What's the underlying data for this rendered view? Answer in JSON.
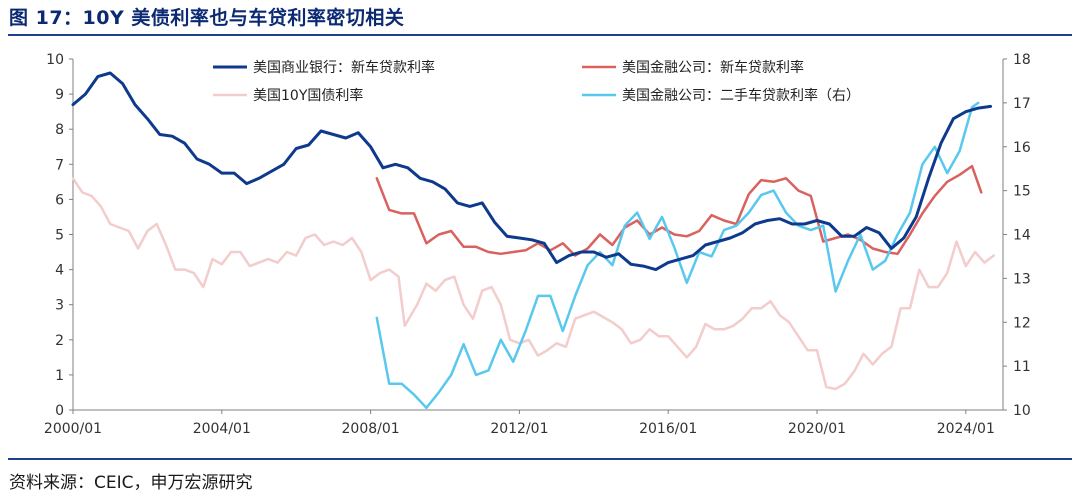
{
  "figure": {
    "title": "图 17：10Y 美债利率也与车贷利率密切相关",
    "source": "资料来源：CEIC，申万宏源研究"
  },
  "chart_data": {
    "type": "line",
    "title": "图 17：10Y 美债利率也与车贷利率密切相关",
    "x_ticks": [
      "2000/01",
      "2004/01",
      "2008/01",
      "2012/01",
      "2016/01",
      "2020/01",
      "2024/01"
    ],
    "xlim": [
      "2000/01",
      "2025/01"
    ],
    "ylim_left": [
      0,
      10
    ],
    "ylim_right": [
      10,
      18
    ],
    "y_ticks_left": [
      "0",
      "1",
      "2",
      "3",
      "4",
      "5",
      "6",
      "7",
      "8",
      "9",
      "10"
    ],
    "y_ticks_right": [
      "10",
      "11",
      "12",
      "13",
      "14",
      "15",
      "16",
      "17",
      "18"
    ],
    "grid": false,
    "legend_placement": "top",
    "series": [
      {
        "name": "美国商业银行：新车贷款利率",
        "axis": "left",
        "color": "#0d3a8c",
        "line_width": 3,
        "points": [
          [
            "2000/01",
            8.7
          ],
          [
            "2000/05",
            9.0
          ],
          [
            "2000/09",
            9.5
          ],
          [
            "2001/01",
            9.6
          ],
          [
            "2001/05",
            9.3
          ],
          [
            "2001/09",
            8.7
          ],
          [
            "2002/01",
            8.3
          ],
          [
            "2002/05",
            7.85
          ],
          [
            "2002/09",
            7.8
          ],
          [
            "2003/01",
            7.6
          ],
          [
            "2003/05",
            7.15
          ],
          [
            "2003/09",
            7.0
          ],
          [
            "2004/01",
            6.75
          ],
          [
            "2004/05",
            6.75
          ],
          [
            "2004/09",
            6.45
          ],
          [
            "2005/01",
            6.6
          ],
          [
            "2005/05",
            6.8
          ],
          [
            "2005/09",
            7.0
          ],
          [
            "2006/01",
            7.45
          ],
          [
            "2006/05",
            7.55
          ],
          [
            "2006/09",
            7.95
          ],
          [
            "2007/01",
            7.85
          ],
          [
            "2007/05",
            7.75
          ],
          [
            "2007/09",
            7.9
          ],
          [
            "2008/01",
            7.5
          ],
          [
            "2008/05",
            6.9
          ],
          [
            "2008/09",
            7.0
          ],
          [
            "2009/01",
            6.9
          ],
          [
            "2009/05",
            6.6
          ],
          [
            "2009/09",
            6.5
          ],
          [
            "2010/01",
            6.3
          ],
          [
            "2010/05",
            5.9
          ],
          [
            "2010/09",
            5.8
          ],
          [
            "2011/01",
            5.9
          ],
          [
            "2011/05",
            5.35
          ],
          [
            "2011/09",
            4.95
          ],
          [
            "2012/01",
            4.9
          ],
          [
            "2012/05",
            4.85
          ],
          [
            "2012/09",
            4.75
          ],
          [
            "2013/01",
            4.2
          ],
          [
            "2013/05",
            4.4
          ],
          [
            "2013/09",
            4.5
          ],
          [
            "2014/01",
            4.5
          ],
          [
            "2014/05",
            4.35
          ],
          [
            "2014/09",
            4.45
          ],
          [
            "2015/01",
            4.15
          ],
          [
            "2015/05",
            4.1
          ],
          [
            "2015/09",
            4.0
          ],
          [
            "2016/01",
            4.2
          ],
          [
            "2016/05",
            4.3
          ],
          [
            "2016/09",
            4.4
          ],
          [
            "2017/01",
            4.7
          ],
          [
            "2017/05",
            4.8
          ],
          [
            "2017/09",
            4.9
          ],
          [
            "2018/01",
            5.05
          ],
          [
            "2018/05",
            5.3
          ],
          [
            "2018/09",
            5.4
          ],
          [
            "2019/01",
            5.45
          ],
          [
            "2019/05",
            5.3
          ],
          [
            "2019/09",
            5.3
          ],
          [
            "2020/01",
            5.4
          ],
          [
            "2020/05",
            5.3
          ],
          [
            "2020/09",
            4.95
          ],
          [
            "2021/01",
            4.95
          ],
          [
            "2021/05",
            5.2
          ],
          [
            "2021/09",
            5.05
          ],
          [
            "2022/01",
            4.6
          ],
          [
            "2022/05",
            4.9
          ],
          [
            "2022/09",
            5.5
          ],
          [
            "2023/01",
            6.6
          ],
          [
            "2023/05",
            7.6
          ],
          [
            "2023/09",
            8.3
          ],
          [
            "2024/01",
            8.5
          ],
          [
            "2024/05",
            8.6
          ],
          [
            "2024/09",
            8.65
          ]
        ]
      },
      {
        "name": "美国金融公司：新车贷款利率",
        "axis": "left",
        "color": "#d9625f",
        "line_width": 2.5,
        "points": [
          [
            "2008/03",
            6.6
          ],
          [
            "2008/07",
            5.7
          ],
          [
            "2008/11",
            5.6
          ],
          [
            "2009/03",
            5.6
          ],
          [
            "2009/07",
            4.75
          ],
          [
            "2009/11",
            5.0
          ],
          [
            "2010/03",
            5.1
          ],
          [
            "2010/07",
            4.65
          ],
          [
            "2010/11",
            4.65
          ],
          [
            "2011/03",
            4.5
          ],
          [
            "2011/07",
            4.45
          ],
          [
            "2011/11",
            4.5
          ],
          [
            "2012/03",
            4.55
          ],
          [
            "2012/07",
            4.75
          ],
          [
            "2012/11",
            4.55
          ],
          [
            "2013/03",
            4.75
          ],
          [
            "2013/07",
            4.4
          ],
          [
            "2013/11",
            4.6
          ],
          [
            "2014/03",
            5.0
          ],
          [
            "2014/07",
            4.7
          ],
          [
            "2014/11",
            5.2
          ],
          [
            "2015/03",
            5.4
          ],
          [
            "2015/07",
            5.0
          ],
          [
            "2015/11",
            5.2
          ],
          [
            "2016/03",
            5.0
          ],
          [
            "2016/07",
            4.95
          ],
          [
            "2016/11",
            5.1
          ],
          [
            "2017/03",
            5.55
          ],
          [
            "2017/07",
            5.4
          ],
          [
            "2017/11",
            5.3
          ],
          [
            "2018/03",
            6.15
          ],
          [
            "2018/07",
            6.55
          ],
          [
            "2018/11",
            6.5
          ],
          [
            "2019/03",
            6.6
          ],
          [
            "2019/07",
            6.25
          ],
          [
            "2019/11",
            6.1
          ],
          [
            "2020/03",
            4.8
          ],
          [
            "2020/07",
            4.9
          ],
          [
            "2020/11",
            5.0
          ],
          [
            "2021/03",
            4.85
          ],
          [
            "2021/07",
            4.6
          ],
          [
            "2021/11",
            4.5
          ],
          [
            "2022/03",
            4.45
          ],
          [
            "2022/07",
            5.0
          ],
          [
            "2022/11",
            5.6
          ],
          [
            "2023/03",
            6.1
          ],
          [
            "2023/07",
            6.5
          ],
          [
            "2023/11",
            6.7
          ],
          [
            "2024/03",
            6.95
          ],
          [
            "2024/06",
            6.2
          ]
        ]
      },
      {
        "name": "美国10Y国债利率",
        "axis": "left",
        "color": "#f3cccc",
        "line_width": 2.5,
        "points": [
          [
            "2000/01",
            6.6
          ],
          [
            "2000/04",
            6.2
          ],
          [
            "2000/07",
            6.1
          ],
          [
            "2000/10",
            5.8
          ],
          [
            "2001/01",
            5.3
          ],
          [
            "2001/04",
            5.2
          ],
          [
            "2001/07",
            5.1
          ],
          [
            "2001/10",
            4.6
          ],
          [
            "2002/01",
            5.1
          ],
          [
            "2002/04",
            5.3
          ],
          [
            "2002/07",
            4.7
          ],
          [
            "2002/10",
            4.0
          ],
          [
            "2003/01",
            4.0
          ],
          [
            "2003/04",
            3.9
          ],
          [
            "2003/07",
            3.5
          ],
          [
            "2003/10",
            4.3
          ],
          [
            "2004/01",
            4.15
          ],
          [
            "2004/04",
            4.5
          ],
          [
            "2004/07",
            4.5
          ],
          [
            "2004/10",
            4.1
          ],
          [
            "2005/01",
            4.2
          ],
          [
            "2005/04",
            4.3
          ],
          [
            "2005/07",
            4.2
          ],
          [
            "2005/10",
            4.5
          ],
          [
            "2006/01",
            4.4
          ],
          [
            "2006/04",
            4.9
          ],
          [
            "2006/07",
            5.0
          ],
          [
            "2006/10",
            4.7
          ],
          [
            "2007/01",
            4.8
          ],
          [
            "2007/04",
            4.7
          ],
          [
            "2007/07",
            4.9
          ],
          [
            "2007/10",
            4.5
          ],
          [
            "2008/01",
            3.7
          ],
          [
            "2008/04",
            3.9
          ],
          [
            "2008/07",
            4.0
          ],
          [
            "2008/10",
            3.8
          ],
          [
            "2008/12",
            2.4
          ],
          [
            "2009/04",
            3.0
          ],
          [
            "2009/07",
            3.6
          ],
          [
            "2009/10",
            3.4
          ],
          [
            "2010/01",
            3.7
          ],
          [
            "2010/04",
            3.8
          ],
          [
            "2010/07",
            3.0
          ],
          [
            "2010/10",
            2.6
          ],
          [
            "2011/01",
            3.4
          ],
          [
            "2011/04",
            3.5
          ],
          [
            "2011/07",
            3.0
          ],
          [
            "2011/10",
            2.0
          ],
          [
            "2012/01",
            1.9
          ],
          [
            "2012/04",
            2.0
          ],
          [
            "2012/07",
            1.55
          ],
          [
            "2012/10",
            1.7
          ],
          [
            "2013/01",
            1.9
          ],
          [
            "2013/04",
            1.8
          ],
          [
            "2013/07",
            2.6
          ],
          [
            "2013/10",
            2.7
          ],
          [
            "2014/01",
            2.8
          ],
          [
            "2014/04",
            2.65
          ],
          [
            "2014/07",
            2.5
          ],
          [
            "2014/10",
            2.3
          ],
          [
            "2015/01",
            1.9
          ],
          [
            "2015/04",
            2.0
          ],
          [
            "2015/07",
            2.3
          ],
          [
            "2015/10",
            2.1
          ],
          [
            "2016/01",
            2.1
          ],
          [
            "2016/04",
            1.8
          ],
          [
            "2016/07",
            1.5
          ],
          [
            "2016/10",
            1.8
          ],
          [
            "2017/01",
            2.45
          ],
          [
            "2017/04",
            2.3
          ],
          [
            "2017/07",
            2.3
          ],
          [
            "2017/10",
            2.4
          ],
          [
            "2018/01",
            2.6
          ],
          [
            "2018/04",
            2.9
          ],
          [
            "2018/07",
            2.9
          ],
          [
            "2018/10",
            3.1
          ],
          [
            "2019/01",
            2.7
          ],
          [
            "2019/04",
            2.5
          ],
          [
            "2019/07",
            2.1
          ],
          [
            "2019/10",
            1.7
          ],
          [
            "2020/01",
            1.7
          ],
          [
            "2020/04",
            0.65
          ],
          [
            "2020/07",
            0.6
          ],
          [
            "2020/10",
            0.75
          ],
          [
            "2021/01",
            1.1
          ],
          [
            "2021/04",
            1.6
          ],
          [
            "2021/07",
            1.3
          ],
          [
            "2021/10",
            1.6
          ],
          [
            "2022/01",
            1.8
          ],
          [
            "2022/04",
            2.9
          ],
          [
            "2022/07",
            2.9
          ],
          [
            "2022/10",
            4.0
          ],
          [
            "2023/01",
            3.5
          ],
          [
            "2023/04",
            3.5
          ],
          [
            "2023/07",
            3.9
          ],
          [
            "2023/10",
            4.8
          ],
          [
            "2024/01",
            4.1
          ],
          [
            "2024/04",
            4.5
          ],
          [
            "2024/07",
            4.2
          ],
          [
            "2024/10",
            4.4
          ]
        ]
      },
      {
        "name": "美国金融公司：二手车贷款利率（右）",
        "axis": "right",
        "color": "#59c8ee",
        "line_width": 2.5,
        "points": [
          [
            "2008/03",
            12.1
          ],
          [
            "2008/07",
            10.6
          ],
          [
            "2008/11",
            10.6
          ],
          [
            "2009/03",
            10.35
          ],
          [
            "2009/07",
            10.05
          ],
          [
            "2009/11",
            10.4
          ],
          [
            "2010/03",
            10.8
          ],
          [
            "2010/07",
            11.5
          ],
          [
            "2010/11",
            10.8
          ],
          [
            "2011/03",
            10.9
          ],
          [
            "2011/07",
            11.6
          ],
          [
            "2011/11",
            11.1
          ],
          [
            "2012/03",
            11.8
          ],
          [
            "2012/07",
            12.6
          ],
          [
            "2012/11",
            12.6
          ],
          [
            "2013/03",
            11.8
          ],
          [
            "2013/07",
            12.6
          ],
          [
            "2013/11",
            13.3
          ],
          [
            "2014/03",
            13.6
          ],
          [
            "2014/07",
            13.3
          ],
          [
            "2014/11",
            14.2
          ],
          [
            "2015/03",
            14.5
          ],
          [
            "2015/07",
            13.9
          ],
          [
            "2015/11",
            14.4
          ],
          [
            "2016/03",
            13.7
          ],
          [
            "2016/07",
            12.9
          ],
          [
            "2016/11",
            13.6
          ],
          [
            "2017/03",
            13.5
          ],
          [
            "2017/07",
            14.1
          ],
          [
            "2017/11",
            14.2
          ],
          [
            "2018/03",
            14.5
          ],
          [
            "2018/07",
            14.9
          ],
          [
            "2018/11",
            15.0
          ],
          [
            "2019/03",
            14.5
          ],
          [
            "2019/07",
            14.2
          ],
          [
            "2019/11",
            14.1
          ],
          [
            "2020/03",
            14.2
          ],
          [
            "2020/07",
            12.7
          ],
          [
            "2020/11",
            13.4
          ],
          [
            "2021/03",
            14.0
          ],
          [
            "2021/07",
            13.2
          ],
          [
            "2021/11",
            13.4
          ],
          [
            "2022/03",
            14.0
          ],
          [
            "2022/07",
            14.5
          ],
          [
            "2022/11",
            15.6
          ],
          [
            "2023/03",
            16.0
          ],
          [
            "2023/07",
            15.4
          ],
          [
            "2023/11",
            15.9
          ],
          [
            "2024/03",
            16.9
          ],
          [
            "2024/05",
            17.0
          ]
        ]
      }
    ]
  }
}
